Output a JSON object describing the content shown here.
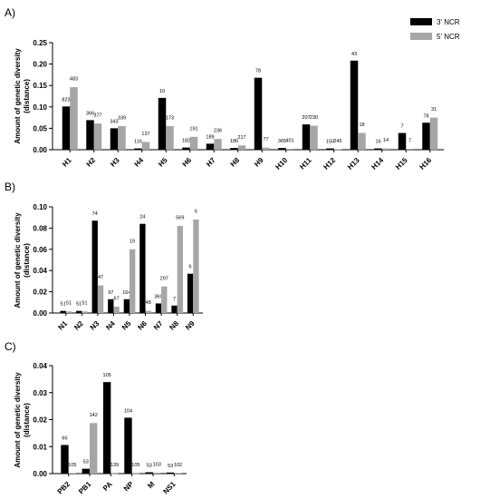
{
  "legend": [
    {
      "name": "3' NCR",
      "color": "#000000"
    },
    {
      "name": "5' NCR",
      "color": "#a6a6a6"
    }
  ],
  "chart_data": [
    {
      "panel": "A)",
      "type": "bar",
      "ylabel_lines": [
        "Amount of genetic diversity",
        "(distance)"
      ],
      "ylim": [
        0,
        0.25
      ],
      "yticks": [
        0.0,
        0.05,
        0.1,
        0.15,
        0.2,
        0.25
      ],
      "ytick_labels": [
        "0.00",
        "0.05",
        "0.10",
        "0.15",
        "0.20",
        "0.25"
      ],
      "categories": [
        "H1",
        "H2",
        "H3",
        "H4",
        "H5",
        "H6",
        "H7",
        "H8",
        "H9",
        "H10",
        "H11",
        "H12",
        "H13",
        "H14",
        "H15",
        "H16"
      ],
      "series": [
        {
          "name": "3' NCR",
          "values": [
            0.101,
            0.069,
            0.05,
            0.003,
            0.121,
            0.005,
            0.014,
            0.004,
            0.168,
            0.004,
            0.059,
            0.003,
            0.208,
            0.003,
            0.039,
            0.063
          ],
          "labels": [
            "823",
            "366",
            "343",
            "116",
            "10",
            "182",
            "189",
            "186",
            "78",
            "365",
            "207",
            "150",
            "43",
            "16",
            "7",
            "78"
          ]
        },
        {
          "name": "5' NCR",
          "values": [
            0.146,
            0.061,
            0.055,
            0.018,
            0.055,
            0.03,
            0.025,
            0.01,
            0.005,
            0.002,
            0.056,
            0.001,
            0.039,
            0.003,
            0.002,
            0.075
          ],
          "labels": [
            "483",
            "377",
            "339",
            "137",
            "173",
            "191",
            "236",
            "217",
            "77",
            "401",
            "230",
            "245",
            "18",
            "14",
            "7",
            "31"
          ]
        }
      ]
    },
    {
      "panel": "B)",
      "type": "bar",
      "ylabel_lines": [
        "Amount of genetic diversity",
        "(distance)"
      ],
      "ylim": [
        0,
        0.1
      ],
      "yticks": [
        0.0,
        0.02,
        0.04,
        0.06,
        0.08,
        0.1
      ],
      "ytick_labels": [
        "0.00",
        "0.02",
        "0.04",
        "0.06",
        "0.08",
        "0.10"
      ],
      "categories": [
        "N1",
        "N2",
        "N3",
        "N4",
        "N5",
        "N6",
        "N7",
        "N8",
        "N9"
      ],
      "series": [
        {
          "name": "3' NCR",
          "values": [
            0.002,
            0.002,
            0.087,
            0.013,
            0.013,
            0.084,
            0.009,
            0.007,
            0.037
          ],
          "labels": [
            "51",
            "51",
            "74",
            "97",
            "164",
            "24",
            "369",
            "7",
            "6"
          ]
        },
        {
          "name": "5' NCR",
          "values": [
            0.0015,
            0.0015,
            0.026,
            0.006,
            0.06,
            0.002,
            0.025,
            0.082,
            0.088
          ],
          "labels": [
            "51",
            "51",
            "47",
            "67",
            "19",
            "48",
            "297",
            "569",
            "6"
          ]
        }
      ]
    },
    {
      "panel": "C)",
      "type": "bar",
      "ylabel_lines": [
        "Amount of genetic diversity",
        "(distance)"
      ],
      "ylim": [
        0,
        0.04
      ],
      "yticks": [
        0.0,
        0.01,
        0.02,
        0.03,
        0.04
      ],
      "ytick_labels": [
        "0.00",
        "0.01",
        "0.02",
        "0.03",
        "0.04"
      ],
      "categories": [
        "PB2",
        "PB1",
        "PA",
        "NP",
        "M",
        "NS1"
      ],
      "series": [
        {
          "name": "3' NCR",
          "values": [
            0.0106,
            0.0018,
            0.0339,
            0.0207,
            0.0005,
            0.0004
          ],
          "labels": [
            "66",
            "53",
            "105",
            "104",
            "53",
            "53"
          ]
        },
        {
          "name": "5' NCR",
          "values": [
            0.0002,
            0.0187,
            0.0001,
            0.0001,
            0.0003,
            0.0002
          ],
          "labels": [
            "105",
            "142",
            "139",
            "105",
            "103",
            "102"
          ]
        }
      ]
    }
  ]
}
